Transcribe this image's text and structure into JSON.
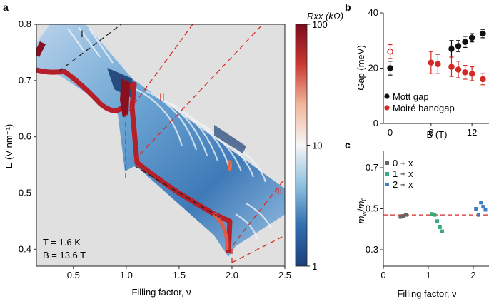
{
  "panels": {
    "a_label": "a",
    "b_label": "b",
    "c_label": "c"
  },
  "chart_data": [
    {
      "id": "a",
      "type": "heatmap",
      "xlabel": "Filling factor, ν",
      "ylabel": "E (V nm⁻¹)",
      "x_ticks": [
        "0.5",
        "1.0",
        "1.5",
        "2.0",
        "2.5"
      ],
      "y_ticks": [
        "0.4",
        "0.5",
        "0.6",
        "0.7",
        "0.8"
      ],
      "xlim": [
        0.15,
        2.5
      ],
      "ylim": [
        0.37,
        0.8
      ],
      "colorbar": {
        "label": "Rxx (kΩ)",
        "scale": "log",
        "min": 1,
        "max": 100,
        "ticks": [
          "1",
          "10",
          "100"
        ],
        "colors": [
          "#1d3f7a",
          "#2f6fb0",
          "#8ec0df",
          "#f5f5f5",
          "#f2b79c",
          "#c93a32",
          "#7a0b1c"
        ]
      },
      "conditions": [
        "T = 1.6 K",
        "B = 13.6 T"
      ],
      "region_labels": [
        "I",
        "II",
        "III"
      ],
      "background": "#e0e0e0"
    },
    {
      "id": "b",
      "type": "scatter",
      "xlabel": "B (T)",
      "ylabel": "Gap (meV)",
      "x_ticks": [
        "0",
        "6",
        "12"
      ],
      "y_ticks": [
        "0",
        "20",
        "40"
      ],
      "xlim": [
        -1,
        14.5
      ],
      "ylim": [
        0,
        40
      ],
      "series": [
        {
          "name": "Mott gap",
          "color": "#111111",
          "points": [
            {
              "x": 0,
              "y": 20,
              "err": 2.5,
              "filled": true
            },
            {
              "x": 9,
              "y": 27,
              "err": 3,
              "filled": true
            },
            {
              "x": 10,
              "y": 28,
              "err": 2,
              "filled": true
            },
            {
              "x": 11,
              "y": 29.5,
              "err": 2,
              "filled": true
            },
            {
              "x": 12,
              "y": 31,
              "err": 1.5,
              "filled": true
            },
            {
              "x": 13.6,
              "y": 32.5,
              "err": 1.5,
              "filled": true
            }
          ]
        },
        {
          "name": "Moiré bandgap",
          "color": "#d42a26",
          "points": [
            {
              "x": 0,
              "y": 26,
              "err": 2.5,
              "filled": false
            },
            {
              "x": 6,
              "y": 22,
              "err": 4,
              "filled": true
            },
            {
              "x": 7,
              "y": 21.5,
              "err": 3.5,
              "filled": true
            },
            {
              "x": 9,
              "y": 20.5,
              "err": 3.5,
              "filled": true
            },
            {
              "x": 10,
              "y": 19.5,
              "err": 3,
              "filled": true
            },
            {
              "x": 11,
              "y": 18.5,
              "err": 2.5,
              "filled": true
            },
            {
              "x": 12,
              "y": 18,
              "err": 2.5,
              "filled": true
            },
            {
              "x": 13.6,
              "y": 16,
              "err": 2,
              "filled": true
            }
          ]
        }
      ]
    },
    {
      "id": "c",
      "type": "scatter",
      "xlabel": "Filling factor, ν",
      "ylabel": "m_w/m_0",
      "x_ticks": [
        "0",
        "1",
        "2"
      ],
      "y_ticks": [
        "0.3",
        "0.5",
        "0.7"
      ],
      "xlim": [
        0,
        2.35
      ],
      "ylim": [
        0.22,
        0.78
      ],
      "reference_line": {
        "y": 0.47,
        "color": "#d42a26"
      },
      "series": [
        {
          "name": "0 + x",
          "color": "#666666",
          "points": [
            [
              0.38,
              0.46
            ],
            [
              0.44,
              0.465
            ],
            [
              0.5,
              0.47
            ]
          ]
        },
        {
          "name": "1 + x",
          "color": "#3aaa7c",
          "points": [
            [
              1.08,
              0.475
            ],
            [
              1.14,
              0.47
            ],
            [
              1.2,
              0.44
            ],
            [
              1.26,
              0.41
            ],
            [
              1.31,
              0.39
            ]
          ]
        },
        {
          "name": "2 + x",
          "color": "#3e7fc4",
          "points": [
            [
              2.06,
              0.5
            ],
            [
              2.12,
              0.47
            ],
            [
              2.17,
              0.53
            ],
            [
              2.22,
              0.51
            ],
            [
              2.27,
              0.495
            ]
          ]
        }
      ]
    }
  ]
}
